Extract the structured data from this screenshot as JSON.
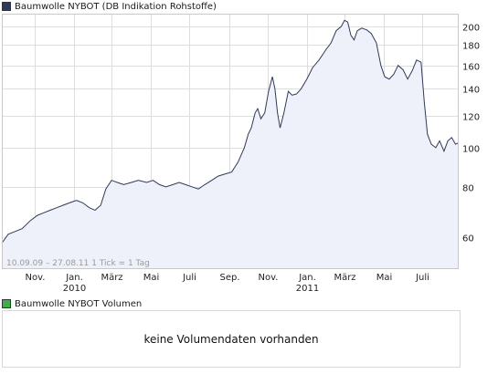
{
  "legend": {
    "main_label": "Baumwolle NYBOT (DB Indikation Rohstoffe)",
    "main_color": "#2e3a59",
    "volume_label": "Baumwolle NYBOT Volumen",
    "volume_color": "#3cb043"
  },
  "volume_panel": {
    "message": "keine Volumendaten vorhanden"
  },
  "range_label": "10.09.09 – 27.08.11",
  "tick_label": "1 Tick = 1 Tag",
  "chart_data": {
    "type": "area",
    "title": "",
    "xlabel": "",
    "ylabel": "",
    "y_scale": "log",
    "ylim": [
      50,
      215
    ],
    "y_ticks": [
      60,
      80,
      100,
      120,
      140,
      160,
      180,
      200
    ],
    "x_range": [
      "2009-09-10",
      "2011-08-27"
    ],
    "x_ticks": [
      {
        "date": "2009-11-01",
        "label": "Nov.",
        "sublabel": ""
      },
      {
        "date": "2010-01-01",
        "label": "Jan.",
        "sublabel": "2010"
      },
      {
        "date": "2010-03-01",
        "label": "März",
        "sublabel": ""
      },
      {
        "date": "2010-05-01",
        "label": "Mai",
        "sublabel": ""
      },
      {
        "date": "2010-07-01",
        "label": "Juli",
        "sublabel": ""
      },
      {
        "date": "2010-09-01",
        "label": "Sep.",
        "sublabel": ""
      },
      {
        "date": "2010-11-01",
        "label": "Nov.",
        "sublabel": ""
      },
      {
        "date": "2011-01-01",
        "label": "Jan.",
        "sublabel": "2011"
      },
      {
        "date": "2011-03-01",
        "label": "März",
        "sublabel": ""
      },
      {
        "date": "2011-05-01",
        "label": "Mai",
        "sublabel": ""
      },
      {
        "date": "2011-07-01",
        "label": "Juli",
        "sublabel": ""
      }
    ],
    "grid": true,
    "line_color": "#2e3a59",
    "fill_color": "#eef1fa",
    "series": [
      {
        "name": "Baumwolle NYBOT (DB Indikation Rohstoffe)",
        "points": [
          [
            "2009-09-10",
            58
          ],
          [
            "2009-09-20",
            61
          ],
          [
            "2009-10-01",
            62
          ],
          [
            "2009-10-12",
            63
          ],
          [
            "2009-10-25",
            66
          ],
          [
            "2009-11-05",
            68
          ],
          [
            "2009-11-15",
            69
          ],
          [
            "2009-11-25",
            70
          ],
          [
            "2009-12-05",
            71
          ],
          [
            "2009-12-15",
            72
          ],
          [
            "2009-12-25",
            73
          ],
          [
            "2010-01-05",
            74
          ],
          [
            "2010-01-15",
            73
          ],
          [
            "2010-01-25",
            71
          ],
          [
            "2010-02-03",
            70
          ],
          [
            "2010-02-12",
            72
          ],
          [
            "2010-02-20",
            79
          ],
          [
            "2010-03-01",
            83
          ],
          [
            "2010-03-10",
            82
          ],
          [
            "2010-03-20",
            81
          ],
          [
            "2010-04-01",
            82
          ],
          [
            "2010-04-12",
            83
          ],
          [
            "2010-04-25",
            82
          ],
          [
            "2010-05-05",
            83
          ],
          [
            "2010-05-15",
            81
          ],
          [
            "2010-05-25",
            80
          ],
          [
            "2010-06-05",
            81
          ],
          [
            "2010-06-15",
            82
          ],
          [
            "2010-06-25",
            81
          ],
          [
            "2010-07-05",
            80
          ],
          [
            "2010-07-15",
            79
          ],
          [
            "2010-07-25",
            81
          ],
          [
            "2010-08-05",
            83
          ],
          [
            "2010-08-15",
            85
          ],
          [
            "2010-08-25",
            86
          ],
          [
            "2010-09-05",
            87
          ],
          [
            "2010-09-15",
            92
          ],
          [
            "2010-09-25",
            100
          ],
          [
            "2010-10-01",
            108
          ],
          [
            "2010-10-06",
            112
          ],
          [
            "2010-10-12",
            122
          ],
          [
            "2010-10-16",
            125
          ],
          [
            "2010-10-21",
            118
          ],
          [
            "2010-10-27",
            122
          ],
          [
            "2010-11-02",
            138
          ],
          [
            "2010-11-08",
            150
          ],
          [
            "2010-11-12",
            140
          ],
          [
            "2010-11-16",
            122
          ],
          [
            "2010-11-20",
            112
          ],
          [
            "2010-11-26",
            122
          ],
          [
            "2010-12-03",
            138
          ],
          [
            "2010-12-09",
            135
          ],
          [
            "2010-12-16",
            136
          ],
          [
            "2010-12-23",
            140
          ],
          [
            "2011-01-01",
            148
          ],
          [
            "2011-01-10",
            158
          ],
          [
            "2011-01-20",
            165
          ],
          [
            "2011-01-31",
            175
          ],
          [
            "2011-02-08",
            182
          ],
          [
            "2011-02-16",
            195
          ],
          [
            "2011-02-24",
            200
          ],
          [
            "2011-03-01",
            207
          ],
          [
            "2011-03-06",
            205
          ],
          [
            "2011-03-11",
            190
          ],
          [
            "2011-03-16",
            185
          ],
          [
            "2011-03-21",
            195
          ],
          [
            "2011-03-28",
            198
          ],
          [
            "2011-04-05",
            196
          ],
          [
            "2011-04-12",
            192
          ],
          [
            "2011-04-20",
            182
          ],
          [
            "2011-04-27",
            160
          ],
          [
            "2011-05-03",
            150
          ],
          [
            "2011-05-10",
            148
          ],
          [
            "2011-05-17",
            152
          ],
          [
            "2011-05-24",
            160
          ],
          [
            "2011-06-01",
            156
          ],
          [
            "2011-06-08",
            148
          ],
          [
            "2011-06-15",
            155
          ],
          [
            "2011-06-22",
            165
          ],
          [
            "2011-06-29",
            163
          ],
          [
            "2011-07-04",
            130
          ],
          [
            "2011-07-09",
            108
          ],
          [
            "2011-07-15",
            102
          ],
          [
            "2011-07-22",
            100
          ],
          [
            "2011-07-28",
            104
          ],
          [
            "2011-08-04",
            98
          ],
          [
            "2011-08-10",
            104
          ],
          [
            "2011-08-16",
            106
          ],
          [
            "2011-08-22",
            102
          ],
          [
            "2011-08-27",
            103
          ]
        ]
      }
    ]
  }
}
